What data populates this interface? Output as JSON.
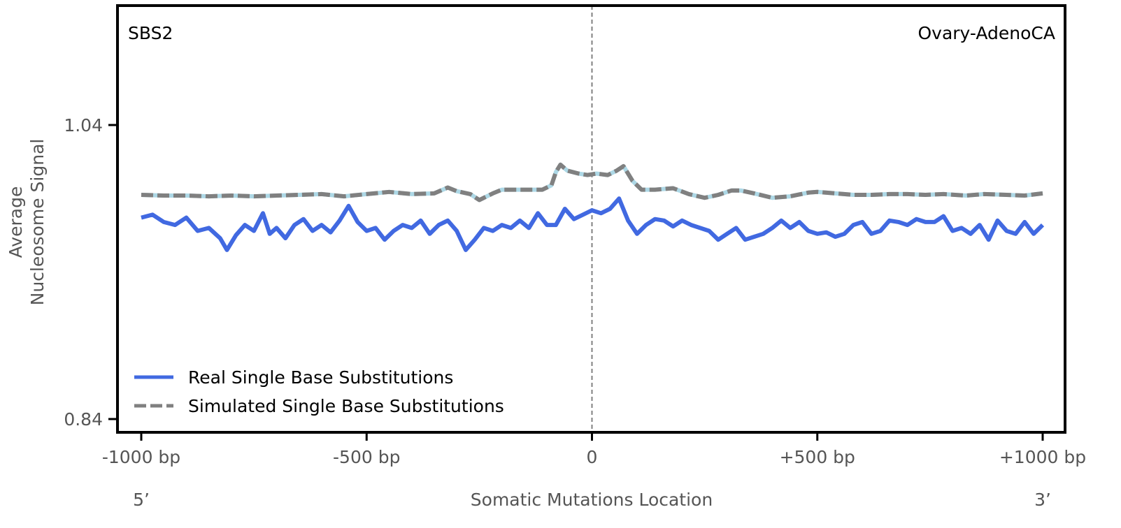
{
  "chart_data": {
    "type": "line",
    "left_label": "SBS2",
    "right_label": "Ovary-AdenoCA",
    "xlabel": "Somatic Mutations Location",
    "ylabel_line1": "Average",
    "ylabel_line2": "Nucleosome Signal",
    "x_end_left": "5’",
    "x_end_right": "3’",
    "xlim": [
      -1000,
      1000
    ],
    "ylim": [
      0.84,
      1.04
    ],
    "xticks": [
      {
        "value": -1000,
        "label": "-1000 bp"
      },
      {
        "value": -500,
        "label": "-500 bp"
      },
      {
        "value": 0,
        "label": "0"
      },
      {
        "value": 500,
        "label": "+500 bp"
      },
      {
        "value": 1000,
        "label": "+1000 bp"
      }
    ],
    "yticks": [
      {
        "value": 1.04,
        "label": "1.04"
      },
      {
        "value": 0.84,
        "label": "0.84"
      }
    ],
    "center_line_x": 0,
    "legend_position": "lower-left",
    "series": [
      {
        "name": "Real Single Base Substitutions",
        "color": "#4169e1",
        "style": "solid",
        "points": [
          [
            -1000,
            0.977
          ],
          [
            -975,
            0.979
          ],
          [
            -950,
            0.974
          ],
          [
            -925,
            0.972
          ],
          [
            -900,
            0.977
          ],
          [
            -875,
            0.968
          ],
          [
            -850,
            0.97
          ],
          [
            -825,
            0.963
          ],
          [
            -810,
            0.955
          ],
          [
            -790,
            0.965
          ],
          [
            -770,
            0.972
          ],
          [
            -750,
            0.968
          ],
          [
            -730,
            0.98
          ],
          [
            -715,
            0.966
          ],
          [
            -700,
            0.97
          ],
          [
            -680,
            0.963
          ],
          [
            -660,
            0.972
          ],
          [
            -640,
            0.976
          ],
          [
            -620,
            0.968
          ],
          [
            -600,
            0.972
          ],
          [
            -580,
            0.967
          ],
          [
            -560,
            0.975
          ],
          [
            -540,
            0.985
          ],
          [
            -520,
            0.974
          ],
          [
            -500,
            0.968
          ],
          [
            -480,
            0.97
          ],
          [
            -460,
            0.962
          ],
          [
            -440,
            0.968
          ],
          [
            -420,
            0.972
          ],
          [
            -400,
            0.97
          ],
          [
            -380,
            0.975
          ],
          [
            -360,
            0.966
          ],
          [
            -340,
            0.972
          ],
          [
            -320,
            0.975
          ],
          [
            -300,
            0.968
          ],
          [
            -280,
            0.955
          ],
          [
            -260,
            0.962
          ],
          [
            -240,
            0.97
          ],
          [
            -220,
            0.968
          ],
          [
            -200,
            0.972
          ],
          [
            -180,
            0.97
          ],
          [
            -160,
            0.975
          ],
          [
            -140,
            0.97
          ],
          [
            -120,
            0.98
          ],
          [
            -100,
            0.972
          ],
          [
            -80,
            0.972
          ],
          [
            -60,
            0.983
          ],
          [
            -40,
            0.976
          ],
          [
            -20,
            0.979
          ],
          [
            0,
            0.982
          ],
          [
            20,
            0.98
          ],
          [
            40,
            0.983
          ],
          [
            60,
            0.99
          ],
          [
            80,
            0.975
          ],
          [
            100,
            0.966
          ],
          [
            120,
            0.972
          ],
          [
            140,
            0.976
          ],
          [
            160,
            0.975
          ],
          [
            180,
            0.971
          ],
          [
            200,
            0.975
          ],
          [
            220,
            0.972
          ],
          [
            240,
            0.97
          ],
          [
            260,
            0.968
          ],
          [
            280,
            0.962
          ],
          [
            300,
            0.966
          ],
          [
            320,
            0.97
          ],
          [
            340,
            0.962
          ],
          [
            360,
            0.964
          ],
          [
            380,
            0.966
          ],
          [
            400,
            0.97
          ],
          [
            420,
            0.975
          ],
          [
            440,
            0.97
          ],
          [
            460,
            0.974
          ],
          [
            480,
            0.968
          ],
          [
            500,
            0.966
          ],
          [
            520,
            0.967
          ],
          [
            540,
            0.964
          ],
          [
            560,
            0.966
          ],
          [
            580,
            0.972
          ],
          [
            600,
            0.974
          ],
          [
            620,
            0.966
          ],
          [
            640,
            0.968
          ],
          [
            660,
            0.975
          ],
          [
            680,
            0.974
          ],
          [
            700,
            0.972
          ],
          [
            720,
            0.976
          ],
          [
            740,
            0.974
          ],
          [
            760,
            0.974
          ],
          [
            780,
            0.978
          ],
          [
            800,
            0.968
          ],
          [
            820,
            0.97
          ],
          [
            840,
            0.966
          ],
          [
            860,
            0.972
          ],
          [
            880,
            0.962
          ],
          [
            900,
            0.975
          ],
          [
            920,
            0.968
          ],
          [
            940,
            0.966
          ],
          [
            960,
            0.974
          ],
          [
            980,
            0.966
          ],
          [
            1000,
            0.972
          ]
        ]
      },
      {
        "name": "Simulated Single Base Substitutions",
        "color": "#808080",
        "highlight_color": "#add8e6",
        "style": "dashed",
        "points": [
          [
            -1000,
            0.9925
          ],
          [
            -950,
            0.992
          ],
          [
            -900,
            0.992
          ],
          [
            -850,
            0.9915
          ],
          [
            -800,
            0.992
          ],
          [
            -750,
            0.9915
          ],
          [
            -700,
            0.992
          ],
          [
            -650,
            0.9925
          ],
          [
            -600,
            0.993
          ],
          [
            -550,
            0.9915
          ],
          [
            -500,
            0.993
          ],
          [
            -450,
            0.9945
          ],
          [
            -400,
            0.993
          ],
          [
            -350,
            0.9935
          ],
          [
            -320,
            0.9975
          ],
          [
            -300,
            0.995
          ],
          [
            -270,
            0.993
          ],
          [
            -250,
            0.989
          ],
          [
            -220,
            0.9935
          ],
          [
            -200,
            0.996
          ],
          [
            -150,
            0.996
          ],
          [
            -110,
            0.996
          ],
          [
            -90,
            0.999
          ],
          [
            -80,
            1.008
          ],
          [
            -70,
            1.013
          ],
          [
            -55,
            1.009
          ],
          [
            -30,
            1.007
          ],
          [
            -10,
            1.006
          ],
          [
            10,
            1.007
          ],
          [
            35,
            1.006
          ],
          [
            55,
            1.009
          ],
          [
            70,
            1.012
          ],
          [
            90,
            1.002
          ],
          [
            110,
            0.996
          ],
          [
            140,
            0.996
          ],
          [
            180,
            0.997
          ],
          [
            215,
            0.993
          ],
          [
            250,
            0.9905
          ],
          [
            280,
            0.9925
          ],
          [
            310,
            0.9955
          ],
          [
            330,
            0.9955
          ],
          [
            360,
            0.9935
          ],
          [
            400,
            0.9905
          ],
          [
            440,
            0.9915
          ],
          [
            480,
            0.994
          ],
          [
            500,
            0.9945
          ],
          [
            540,
            0.9935
          ],
          [
            580,
            0.9925
          ],
          [
            620,
            0.9925
          ],
          [
            660,
            0.993
          ],
          [
            700,
            0.993
          ],
          [
            740,
            0.9925
          ],
          [
            780,
            0.993
          ],
          [
            830,
            0.992
          ],
          [
            870,
            0.993
          ],
          [
            920,
            0.9925
          ],
          [
            960,
            0.992
          ],
          [
            1000,
            0.9935
          ]
        ]
      }
    ]
  }
}
